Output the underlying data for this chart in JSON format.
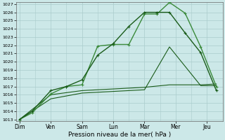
{
  "background_color": "#cce8e8",
  "grid_color": "#aacccc",
  "line_color_dark": "#1a5c1a",
  "line_color_light": "#3a8a3a",
  "xlabel": "Pression niveau de la mer( hPa )",
  "x_labels": [
    "Dim",
    "Ven",
    "Sam",
    "Lun",
    "Mar",
    "Mer",
    "Jeu"
  ],
  "x_tick_positions": [
    0,
    1,
    2,
    3,
    4,
    5,
    6
  ],
  "ylim_min": 1013,
  "ylim_max": 1027,
  "yticks": [
    1013,
    1014,
    1015,
    1016,
    1017,
    1018,
    1019,
    1020,
    1021,
    1022,
    1023,
    1024,
    1025,
    1026,
    1027
  ],
  "series1_x": [
    0,
    0.4,
    1.0,
    1.5,
    2.0,
    2.5,
    3.0,
    3.5,
    4.0,
    4.4,
    4.8,
    5.3,
    5.8,
    6.3
  ],
  "series1_y": [
    1013.0,
    1013.8,
    1016.1,
    1017.0,
    1017.2,
    1021.9,
    1022.1,
    1022.1,
    1025.8,
    1025.8,
    1027.2,
    1025.9,
    1021.8,
    1017.0
  ],
  "series2_x": [
    0,
    0.4,
    1.0,
    1.5,
    2.0,
    2.5,
    3.0,
    3.5,
    4.0,
    4.4,
    4.8,
    5.3,
    5.8,
    6.3
  ],
  "series2_y": [
    1013.0,
    1014.0,
    1016.5,
    1017.0,
    1017.8,
    1020.8,
    1022.2,
    1024.3,
    1026.0,
    1026.0,
    1026.0,
    1023.5,
    1021.1,
    1016.5
  ],
  "series3_x": [
    0,
    1.0,
    2.0,
    3.0,
    4.0,
    4.8,
    5.8,
    6.3
  ],
  "series3_y": [
    1013.0,
    1016.0,
    1016.5,
    1016.7,
    1016.9,
    1017.2,
    1017.2,
    1017.3
  ],
  "series4_x": [
    0,
    1.0,
    2.0,
    3.0,
    4.0,
    4.8,
    5.8,
    6.3
  ],
  "series4_y": [
    1013.0,
    1015.5,
    1016.2,
    1016.4,
    1016.6,
    1021.8,
    1017.1,
    1017.1
  ],
  "marker_size": 4,
  "lw_main": 1.0,
  "lw_flat": 0.8
}
